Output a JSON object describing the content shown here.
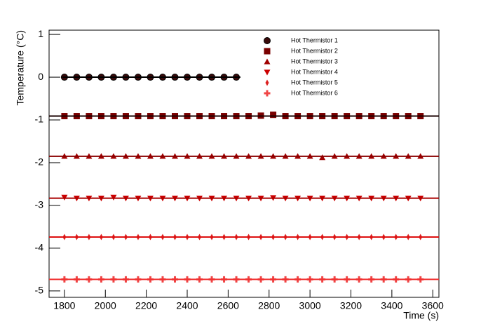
{
  "chart_data": {
    "type": "scatter",
    "x_label": "Time (s)",
    "y_label": "Temperature (°C)",
    "xlim": [
      1725,
      3630
    ],
    "ylim": [
      -5.15,
      1.1
    ],
    "xticks": [
      1800,
      2000,
      2200,
      2400,
      2600,
      2800,
      3000,
      3200,
      3400,
      3600
    ],
    "yticks": [
      -5,
      -4,
      -3,
      -2,
      -1,
      0,
      1
    ],
    "legend": "top-right",
    "x": [
      1800,
      1860,
      1920,
      1980,
      2040,
      2100,
      2160,
      2220,
      2280,
      2340,
      2400,
      2460,
      2520,
      2580,
      2640,
      2700,
      2760,
      2820,
      2880,
      2940,
      3000,
      3060,
      3120,
      3180,
      3240,
      3300,
      3360,
      3420,
      3480,
      3540
    ],
    "series": [
      {
        "name": "Hot Thermistor 1",
        "color": "#3a0a0a",
        "marker": "circle",
        "values": [
          0,
          0,
          0,
          0,
          0,
          0,
          0,
          0,
          0,
          0,
          0,
          0,
          0,
          0,
          0,
          null,
          null,
          null,
          null,
          null,
          null,
          null,
          null,
          null,
          null,
          null,
          null,
          null,
          null,
          null
        ],
        "fit": {
          "value": 0,
          "x": [
            1790,
            2660
          ],
          "color": "#000000"
        }
      },
      {
        "name": "Hot Thermistor 2",
        "color": "#7a0000",
        "marker": "square",
        "values": [
          -0.91,
          -0.91,
          -0.91,
          -0.91,
          -0.91,
          -0.91,
          -0.91,
          -0.91,
          -0.91,
          -0.91,
          -0.91,
          -0.91,
          -0.91,
          -0.91,
          -0.91,
          -0.91,
          -0.9,
          -0.88,
          -0.91,
          -0.91,
          -0.91,
          -0.91,
          -0.91,
          -0.91,
          -0.91,
          -0.91,
          -0.91,
          -0.91,
          -0.91,
          -0.91
        ],
        "fit": {
          "value": -0.91,
          "x": [
            1725,
            3630
          ],
          "color": "#1a0000"
        }
      },
      {
        "name": "Hot Thermistor 3",
        "color": "#a00000",
        "marker": "triangle-up",
        "values": [
          -1.85,
          -1.85,
          -1.85,
          -1.85,
          -1.85,
          -1.85,
          -1.85,
          -1.85,
          -1.85,
          -1.85,
          -1.85,
          -1.85,
          -1.85,
          -1.85,
          -1.85,
          -1.85,
          -1.85,
          -1.85,
          -1.85,
          -1.85,
          -1.85,
          -1.88,
          -1.85,
          -1.85,
          -1.85,
          -1.85,
          -1.85,
          -1.85,
          -1.85,
          -1.85
        ],
        "fit": {
          "value": -1.85,
          "x": [
            1725,
            3630
          ],
          "color": "#8a0000"
        }
      },
      {
        "name": "Hot Thermistor 4",
        "color": "#cc0000",
        "marker": "triangle-down",
        "values": [
          -2.81,
          -2.83,
          -2.83,
          -2.83,
          -2.81,
          -2.83,
          -2.83,
          -2.83,
          -2.83,
          -2.83,
          -2.83,
          -2.83,
          -2.83,
          -2.83,
          -2.83,
          -2.83,
          -2.83,
          -2.82,
          -2.83,
          -2.83,
          -2.83,
          -2.83,
          -2.83,
          -2.83,
          -2.83,
          -2.83,
          -2.83,
          -2.83,
          -2.83,
          -2.83
        ],
        "fit": {
          "value": -2.83,
          "x": [
            1725,
            3630
          ],
          "color": "#aa0000"
        }
      },
      {
        "name": "Hot Thermistor 5",
        "color": "#dd2020",
        "marker": "diamond",
        "values": [
          -3.74,
          -3.74,
          -3.74,
          -3.74,
          -3.74,
          -3.74,
          -3.74,
          -3.74,
          -3.74,
          -3.74,
          -3.74,
          -3.74,
          -3.74,
          -3.74,
          -3.74,
          -3.74,
          -3.74,
          -3.74,
          -3.74,
          -3.74,
          -3.74,
          -3.74,
          -3.74,
          -3.74,
          -3.74,
          -3.74,
          -3.74,
          -3.74,
          -3.74,
          -3.74
        ],
        "fit": {
          "value": -3.74,
          "x": [
            1725,
            3630
          ],
          "color": "#dd1010"
        }
      },
      {
        "name": "Hot Thermistor 6",
        "color": "#f04545",
        "marker": "cross",
        "values": [
          -4.73,
          -4.73,
          -4.73,
          -4.73,
          -4.73,
          -4.73,
          -4.73,
          -4.73,
          -4.73,
          -4.73,
          -4.73,
          -4.73,
          -4.73,
          -4.73,
          -4.73,
          -4.73,
          -4.73,
          -4.73,
          -4.73,
          -4.73,
          -4.73,
          -4.73,
          -4.73,
          -4.73,
          -4.73,
          -4.73,
          -4.73,
          -4.73,
          -4.73,
          -4.73
        ],
        "fit": {
          "value": -4.73,
          "x": [
            1725,
            3630
          ],
          "color": "#f03030"
        }
      }
    ]
  }
}
